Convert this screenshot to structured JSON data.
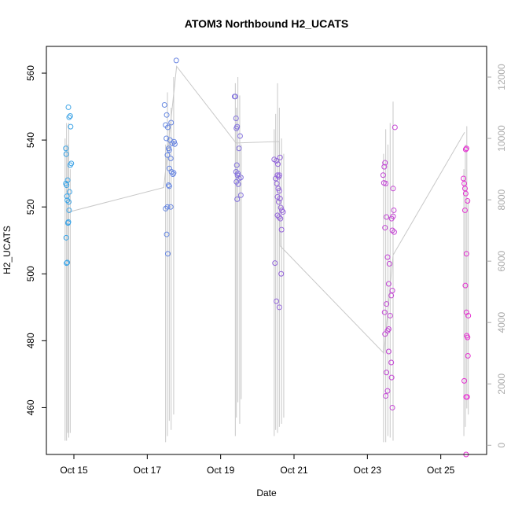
{
  "chart_data": {
    "type": "scatter",
    "title": "ATOM3 Northbound H2_UCATS",
    "xlabel": "Date",
    "ylabel": "H2_UCATS",
    "x_ticks": [
      "Oct 15",
      "Oct 17",
      "Oct 19",
      "Oct 21",
      "Oct 23",
      "Oct 25"
    ],
    "y_ticks": [
      460,
      480,
      500,
      520,
      540,
      560
    ],
    "y2_ticks": [
      0,
      2000,
      4000,
      6000,
      8000,
      10000,
      12000
    ],
    "xlim_days": [
      14.25,
      26.25
    ],
    "ylim": [
      446,
      568
    ],
    "y2lim": [
      -300,
      13000
    ],
    "point_color_range": [
      "#39A5E6",
      "#E62ED1"
    ],
    "line_color": "#C8C8C8",
    "series": [
      {
        "points": [
          {
            "day": 14.78,
            "value": 537.5
          },
          {
            "day": 14.79,
            "value": 535.8
          },
          {
            "day": 14.8,
            "value": 526.5
          },
          {
            "day": 14.78,
            "value": 527.0
          },
          {
            "day": 14.81,
            "value": 523.2
          },
          {
            "day": 14.82,
            "value": 522.0
          },
          {
            "day": 14.83,
            "value": 528.0
          },
          {
            "day": 14.79,
            "value": 510.8
          },
          {
            "day": 14.8,
            "value": 503.2
          },
          {
            "day": 14.82,
            "value": 503.4
          },
          {
            "day": 14.84,
            "value": 515.2
          },
          {
            "day": 14.85,
            "value": 515.5
          },
          {
            "day": 14.86,
            "value": 521.5
          },
          {
            "day": 14.87,
            "value": 519.0
          },
          {
            "day": 14.88,
            "value": 524.5
          },
          {
            "day": 14.85,
            "value": 549.8
          },
          {
            "day": 14.87,
            "value": 546.8
          },
          {
            "day": 14.9,
            "value": 547.2
          },
          {
            "day": 14.91,
            "value": 544.0
          },
          {
            "day": 14.9,
            "value": 532.5
          },
          {
            "day": 14.93,
            "value": 533.0
          },
          {
            "day": 17.47,
            "value": 550.5
          },
          {
            "day": 17.5,
            "value": 544.5
          },
          {
            "day": 17.53,
            "value": 547.5
          },
          {
            "day": 17.56,
            "value": 543.8
          },
          {
            "day": 17.52,
            "value": 540.5
          },
          {
            "day": 17.55,
            "value": 535.5
          },
          {
            "day": 17.58,
            "value": 537.5
          },
          {
            "day": 17.6,
            "value": 537.0
          },
          {
            "day": 17.62,
            "value": 540.0
          },
          {
            "day": 17.65,
            "value": 545.2
          },
          {
            "day": 17.64,
            "value": 534.5
          },
          {
            "day": 17.6,
            "value": 531.5
          },
          {
            "day": 17.66,
            "value": 530.5
          },
          {
            "day": 17.7,
            "value": 529.8
          },
          {
            "day": 17.72,
            "value": 530.2
          },
          {
            "day": 17.68,
            "value": 539.0
          },
          {
            "day": 17.73,
            "value": 539.5
          },
          {
            "day": 17.75,
            "value": 538.8
          },
          {
            "day": 17.5,
            "value": 519.5
          },
          {
            "day": 17.55,
            "value": 520.0
          },
          {
            "day": 17.58,
            "value": 526.5
          },
          {
            "day": 17.6,
            "value": 526.2
          },
          {
            "day": 17.64,
            "value": 520.0
          },
          {
            "day": 17.53,
            "value": 511.8
          },
          {
            "day": 17.56,
            "value": 506.0
          },
          {
            "day": 17.79,
            "value": 563.8
          },
          {
            "day": 19.38,
            "value": 553.0
          },
          {
            "day": 19.4,
            "value": 553.0
          },
          {
            "day": 19.42,
            "value": 546.5
          },
          {
            "day": 19.43,
            "value": 543.5
          },
          {
            "day": 19.45,
            "value": 544.0
          },
          {
            "day": 19.5,
            "value": 537.5
          },
          {
            "day": 19.53,
            "value": 541.2
          },
          {
            "day": 19.44,
            "value": 532.5
          },
          {
            "day": 19.47,
            "value": 530.0
          },
          {
            "day": 19.42,
            "value": 530.5
          },
          {
            "day": 19.46,
            "value": 529.5
          },
          {
            "day": 19.5,
            "value": 528.5
          },
          {
            "day": 19.55,
            "value": 528.8
          },
          {
            "day": 19.43,
            "value": 527.5
          },
          {
            "day": 19.48,
            "value": 526.8
          },
          {
            "day": 19.55,
            "value": 523.5
          },
          {
            "day": 19.45,
            "value": 522.3
          },
          {
            "day": 20.46,
            "value": 534.2
          },
          {
            "day": 20.52,
            "value": 533.8
          },
          {
            "day": 20.56,
            "value": 532.8
          },
          {
            "day": 20.62,
            "value": 534.8
          },
          {
            "day": 20.5,
            "value": 528.5
          },
          {
            "day": 20.55,
            "value": 529.5
          },
          {
            "day": 20.58,
            "value": 529.0
          },
          {
            "day": 20.6,
            "value": 529.5
          },
          {
            "day": 20.53,
            "value": 527.0
          },
          {
            "day": 20.57,
            "value": 525.5
          },
          {
            "day": 20.6,
            "value": 524.8
          },
          {
            "day": 20.55,
            "value": 523.0
          },
          {
            "day": 20.62,
            "value": 522.5
          },
          {
            "day": 20.58,
            "value": 521.5
          },
          {
            "day": 20.64,
            "value": 519.8
          },
          {
            "day": 20.67,
            "value": 519.0
          },
          {
            "day": 20.7,
            "value": 518.5
          },
          {
            "day": 20.55,
            "value": 517.5
          },
          {
            "day": 20.59,
            "value": 517.0
          },
          {
            "day": 20.63,
            "value": 516.5
          },
          {
            "day": 20.66,
            "value": 513.2
          },
          {
            "day": 20.48,
            "value": 503.2
          },
          {
            "day": 20.65,
            "value": 500.0
          },
          {
            "day": 20.52,
            "value": 491.8
          },
          {
            "day": 20.6,
            "value": 490.0
          },
          {
            "day": 23.43,
            "value": 529.5
          },
          {
            "day": 23.46,
            "value": 532.0
          },
          {
            "day": 23.48,
            "value": 533.2
          },
          {
            "day": 23.45,
            "value": 527.2
          },
          {
            "day": 23.5,
            "value": 527.0
          },
          {
            "day": 23.52,
            "value": 517.0
          },
          {
            "day": 23.48,
            "value": 513.8
          },
          {
            "day": 23.55,
            "value": 505.0
          },
          {
            "day": 23.6,
            "value": 503.0
          },
          {
            "day": 23.58,
            "value": 497.0
          },
          {
            "day": 23.52,
            "value": 491.0
          },
          {
            "day": 23.47,
            "value": 488.5
          },
          {
            "day": 23.62,
            "value": 487.5
          },
          {
            "day": 23.58,
            "value": 483.5
          },
          {
            "day": 23.55,
            "value": 483.0
          },
          {
            "day": 23.48,
            "value": 482.0
          },
          {
            "day": 23.58,
            "value": 476.8
          },
          {
            "day": 23.65,
            "value": 473.5
          },
          {
            "day": 23.52,
            "value": 470.5
          },
          {
            "day": 23.66,
            "value": 469.0
          },
          {
            "day": 23.55,
            "value": 465.0
          },
          {
            "day": 23.5,
            "value": 463.5
          },
          {
            "day": 23.68,
            "value": 460.0
          },
          {
            "day": 23.66,
            "value": 516.5
          },
          {
            "day": 23.7,
            "value": 517.2
          },
          {
            "day": 23.72,
            "value": 519.0
          },
          {
            "day": 23.68,
            "value": 513.0
          },
          {
            "day": 23.73,
            "value": 512.5
          },
          {
            "day": 23.7,
            "value": 525.5
          },
          {
            "day": 23.75,
            "value": 543.8
          },
          {
            "day": 23.68,
            "value": 495.0
          },
          {
            "day": 23.65,
            "value": 493.5
          },
          {
            "day": 25.62,
            "value": 528.5
          },
          {
            "day": 25.64,
            "value": 527.0
          },
          {
            "day": 25.68,
            "value": 537.2
          },
          {
            "day": 25.7,
            "value": 537.5
          },
          {
            "day": 25.66,
            "value": 525.5
          },
          {
            "day": 25.73,
            "value": 521.8
          },
          {
            "day": 25.68,
            "value": 524.0
          },
          {
            "day": 25.66,
            "value": 519.0
          },
          {
            "day": 25.7,
            "value": 506.0
          },
          {
            "day": 25.67,
            "value": 496.5
          },
          {
            "day": 25.7,
            "value": 488.5
          },
          {
            "day": 25.75,
            "value": 487.5
          },
          {
            "day": 25.71,
            "value": 481.5
          },
          {
            "day": 25.73,
            "value": 481.0
          },
          {
            "day": 25.74,
            "value": 475.5
          },
          {
            "day": 25.64,
            "value": 468.0
          },
          {
            "day": 25.69,
            "value": 463.2
          },
          {
            "day": 25.72,
            "value": 463.2
          },
          {
            "day": 25.69,
            "value": 446.0
          }
        ]
      }
    ]
  }
}
